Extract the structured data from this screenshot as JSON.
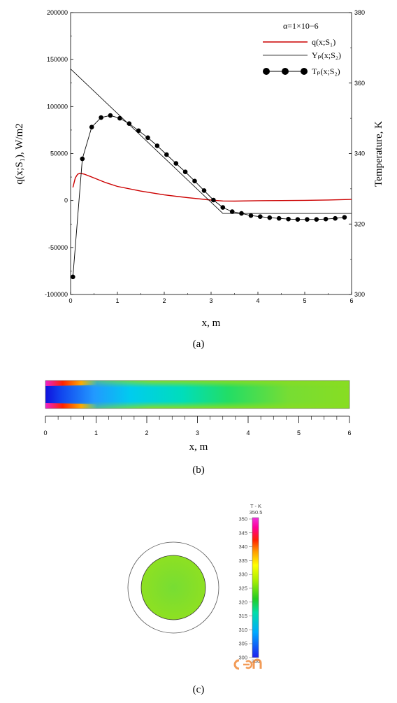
{
  "chart_data": [
    {
      "type": "line",
      "panel_label": "(a)",
      "xlabel": "x, m",
      "ylabel_left": "q(x;S₁), W/m2",
      "ylabel_right": "Temperature, K",
      "xlim": [
        0,
        6
      ],
      "ylim_left": [
        -100000,
        200000
      ],
      "ylim_right": [
        300,
        380
      ],
      "x_ticks": [
        "0",
        "1",
        "2",
        "3",
        "4",
        "5",
        "6"
      ],
      "y_left_ticks": [
        "-100000",
        "-50000",
        "0",
        "50000",
        "100000",
        "150000",
        "200000"
      ],
      "y_right_ticks": [
        "300",
        "320",
        "340",
        "360",
        "380"
      ],
      "annotation": "α=1×10−6",
      "legend_position": "top-right",
      "series": [
        {
          "name": "q(x;S₁)",
          "axis": "left",
          "color": "#cc0000",
          "style": "line",
          "x": [
            0.05,
            0.1,
            0.15,
            0.2,
            0.3,
            0.5,
            0.75,
            1.0,
            1.5,
            2.0,
            2.5,
            3.0,
            3.25,
            3.5,
            4.0,
            4.5,
            5.0,
            5.5,
            6.0
          ],
          "y": [
            14000,
            24000,
            28000,
            29000,
            28000,
            24000,
            19000,
            15000,
            10000,
            6000,
            3000,
            500,
            -500,
            -600,
            -200,
            0,
            200,
            600,
            1200
          ]
        },
        {
          "name": "Yₚ(x;S₂)",
          "axis": "right",
          "color": "#000000",
          "style": "thin-line",
          "x": [
            0,
            3.25,
            6.0
          ],
          "y": [
            364,
            323,
            323
          ]
        },
        {
          "name": "Tₚ(x;S₂)",
          "axis": "right",
          "color": "#000000",
          "style": "line-markers",
          "x": [
            0.05,
            0.25,
            0.45,
            0.65,
            0.85,
            1.05,
            1.25,
            1.45,
            1.65,
            1.85,
            2.05,
            2.25,
            2.45,
            2.65,
            2.85,
            3.05,
            3.25,
            3.45,
            3.65,
            3.85,
            4.05,
            4.25,
            4.45,
            4.65,
            4.85,
            5.05,
            5.25,
            5.45,
            5.65,
            5.85
          ],
          "y": [
            305,
            338.5,
            347.5,
            350.2,
            350.8,
            350,
            348.5,
            346.5,
            344.5,
            342.2,
            339.7,
            337.2,
            334.8,
            332.2,
            329.5,
            326.8,
            324.7,
            323.5,
            323,
            322.4,
            322.1,
            321.8,
            321.6,
            321.4,
            321.3,
            321.3,
            321.3,
            321.4,
            321.6,
            321.9
          ]
        }
      ]
    },
    {
      "type": "heatmap",
      "panel_label": "(b)",
      "xlabel": "x, m",
      "xlim": [
        0,
        6
      ],
      "x_ticks": [
        "0",
        "1",
        "2",
        "3",
        "4",
        "5",
        "6"
      ]
    },
    {
      "type": "heatmap",
      "panel_label": "(c)",
      "colorbar_title": "T - K",
      "colorbar_range": [
        300,
        350.5
      ],
      "colorbar_ticks": [
        "300",
        "305",
        "310",
        "315",
        "320",
        "325",
        "330",
        "335",
        "340",
        "345",
        "350"
      ],
      "colorbar_max_label": "350.5",
      "colorbar_min_label": "300",
      "core_color": "#88dd22",
      "annulus_color": "#ffffff"
    }
  ]
}
